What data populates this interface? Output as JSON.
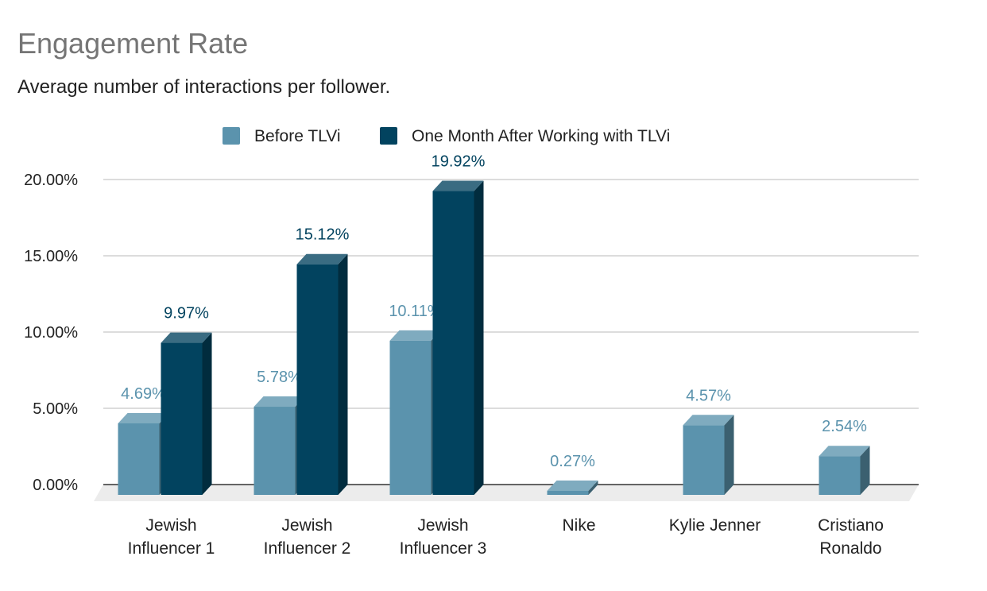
{
  "chart_data": {
    "type": "bar",
    "title": "Engagement Rate",
    "subtitle": "Average number of interactions per follower.",
    "categories": [
      "Jewish Influencer 1",
      "Jewish Influencer 2",
      "Jewish Influencer 3",
      "Nike",
      "Kylie Jenner",
      "Cristiano Ronaldo"
    ],
    "series": [
      {
        "name": "Before TLVi",
        "color": "#5b93ad",
        "values": [
          4.69,
          5.78,
          10.11,
          0.27,
          4.57,
          2.54
        ],
        "labels": [
          "4.69%",
          "5.78%",
          "10.11%",
          "0.27%",
          "4.57%",
          "2.54%"
        ]
      },
      {
        "name": "One Month After Working with TLVi",
        "color": "#02435f",
        "values": [
          9.97,
          15.12,
          19.92,
          null,
          null,
          null
        ],
        "labels": [
          "9.97%",
          "15.12%",
          "19.92%",
          null,
          null,
          null
        ]
      }
    ],
    "yticks": [
      "0.00%",
      "5.00%",
      "10.00%",
      "15.00%",
      "20.00%"
    ],
    "ylim": [
      0,
      20
    ],
    "grid": true,
    "legend_position": "top",
    "style": "3d-bars"
  }
}
